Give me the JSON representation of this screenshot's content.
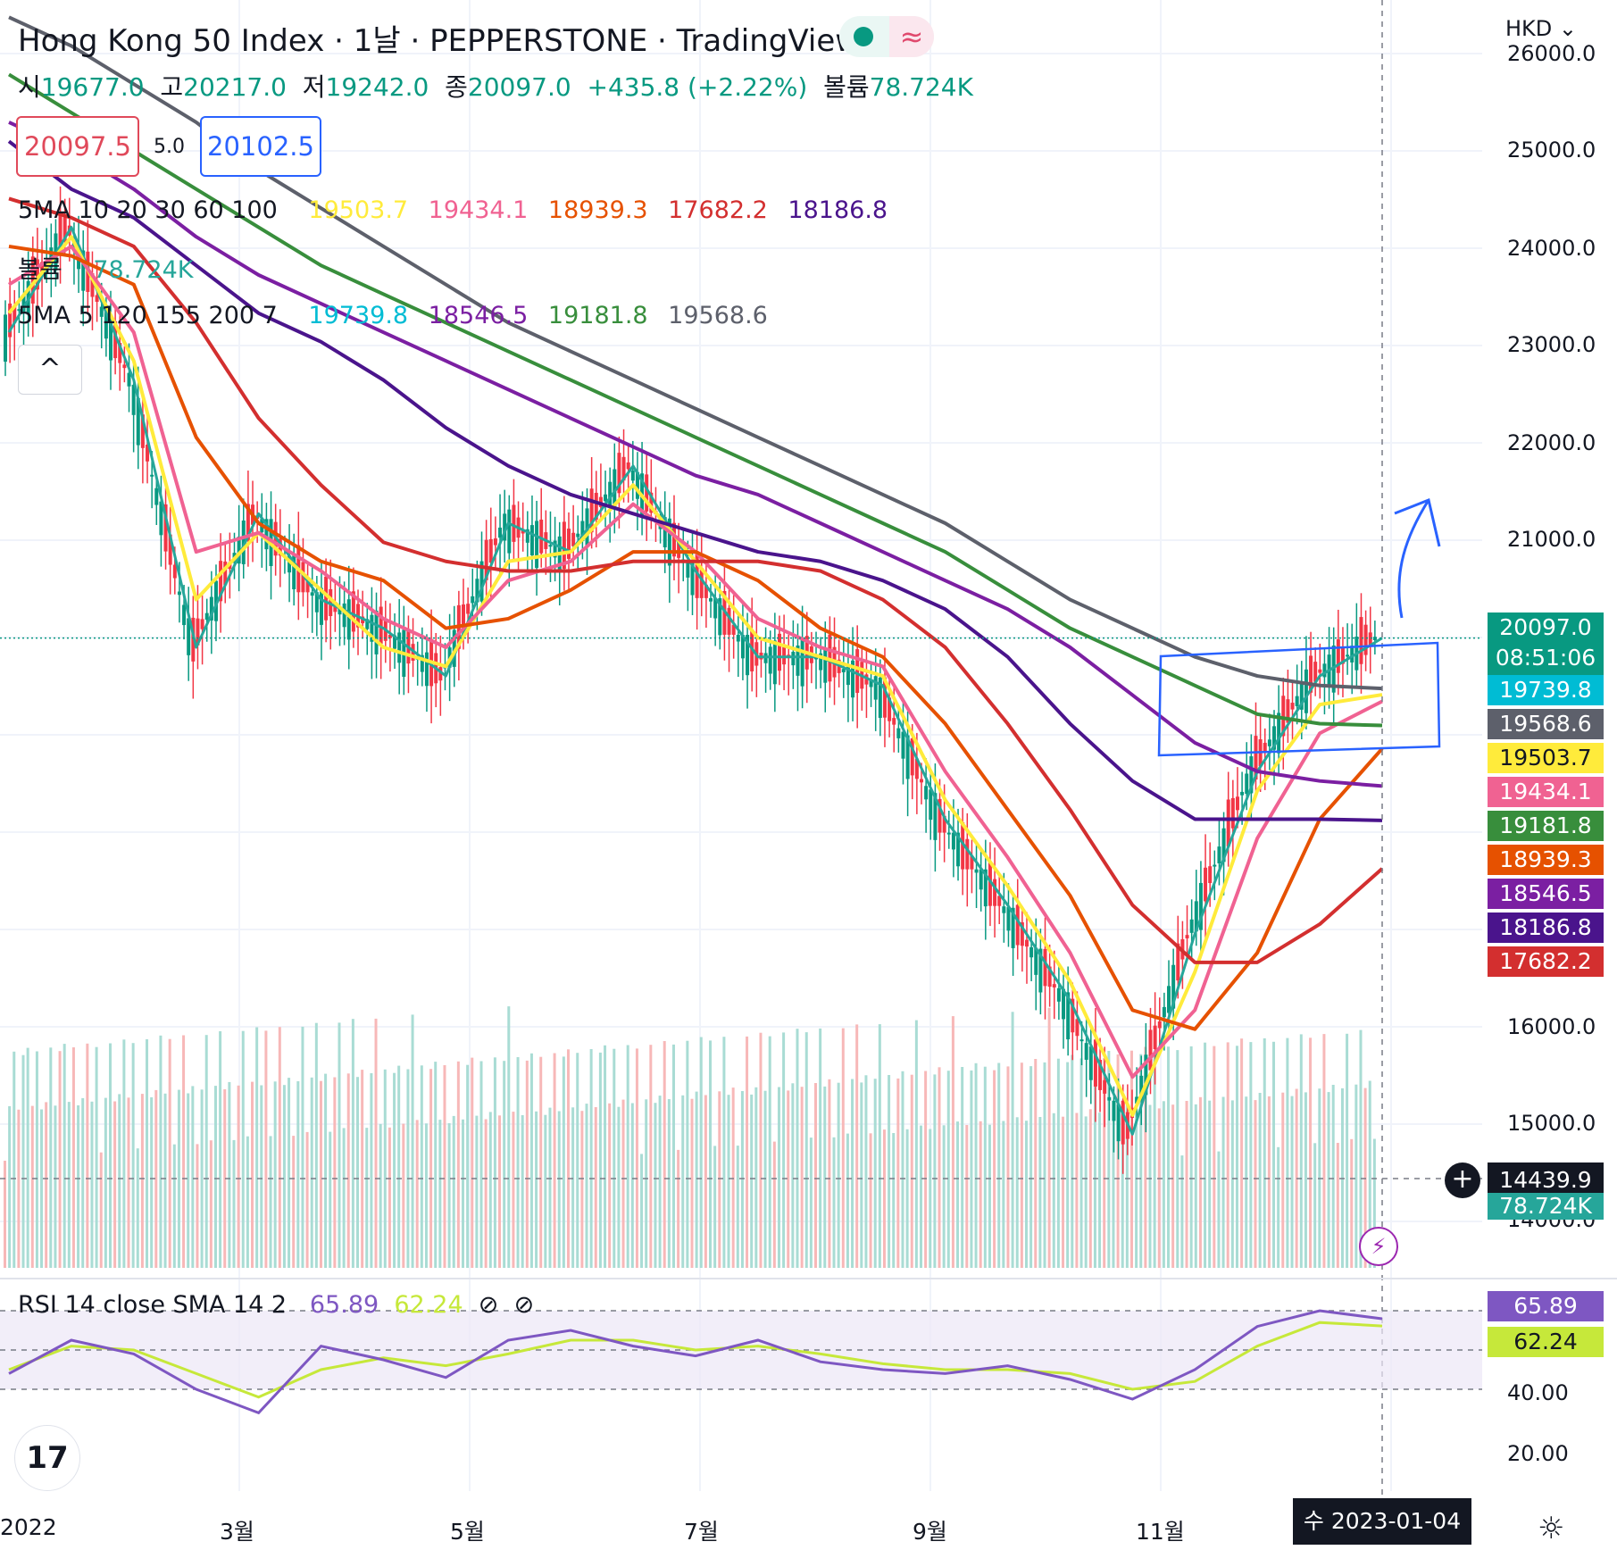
{
  "header": {
    "title": "Hong Kong 50 Index · 1날 · PEPPERSTONE · TradingView",
    "ohlc": [
      {
        "k": "시",
        "v": "19677.0"
      },
      {
        "k": "고",
        "v": "20217.0"
      },
      {
        "k": "저",
        "v": "19242.0"
      },
      {
        "k": "종",
        "v": "20097.0"
      }
    ],
    "change": "+435.8 (+2.22%)",
    "volume_label": "볼륨",
    "volume_value": "78.724K",
    "sell_price": "20097.5",
    "buy_price": "20102.5",
    "spread": "5.0"
  },
  "indicators": {
    "ma1_label": "5MA 10 20 30 60 100",
    "ma1_values": [
      "19503.7",
      "19434.1",
      "18939.3",
      "17682.2",
      "18186.8"
    ],
    "vol_label": "볼륨",
    "vol_value": "78.724K",
    "ma2_label": "5MA 5 120 155 200 7",
    "ma2_values": [
      "19739.8",
      "18546.5",
      "19181.8",
      "19568.6"
    ],
    "collapse_icon": "^"
  },
  "rsi": {
    "label": "RSI 14 close SMA 14 2",
    "rsi_value": "65.89",
    "sma_value": "62.24",
    "ticks": [
      "20.00",
      "40.00"
    ]
  },
  "axis": {
    "currency": "HKD",
    "y_ticks": [
      "26000.0",
      "25000.0",
      "24000.0",
      "23000.0",
      "22000.0",
      "21000.0",
      "16000.0",
      "15000.0",
      "14000.0"
    ],
    "x_ticks": [
      "2022",
      "3월",
      "5월",
      "7월",
      "9월",
      "11월"
    ],
    "date_label": "수 2023-01-04",
    "crosshair_value": "14439.9",
    "last_price": "20097.0",
    "countdown": "08:51:06"
  },
  "price_labels": [
    {
      "value": "19739.8",
      "color": "#00bcd4",
      "text": "#ffffff"
    },
    {
      "value": "19568.6",
      "color": "#5d606b",
      "text": "#ffffff"
    },
    {
      "value": "19503.7",
      "color": "#ffeb3b",
      "text": "#131722"
    },
    {
      "value": "19434.1",
      "color": "#f06292",
      "text": "#ffffff"
    },
    {
      "value": "19181.8",
      "color": "#388e3c",
      "text": "#ffffff"
    },
    {
      "value": "18939.3",
      "color": "#e65100",
      "text": "#ffffff"
    },
    {
      "value": "18546.5",
      "color": "#7b1fa2",
      "text": "#ffffff"
    },
    {
      "value": "18186.8",
      "color": "#4a148c",
      "text": "#ffffff"
    },
    {
      "value": "17682.2",
      "color": "#d32f2f",
      "text": "#ffffff"
    }
  ],
  "chart_data": {
    "type": "line",
    "symbol": "Hong Kong 50 Index",
    "interval": "1D",
    "ylim": [
      13500,
      26500
    ],
    "x": [
      "2022-01",
      "2022-02",
      "2022-03-01",
      "2022-03-15",
      "2022-04-01",
      "2022-04-15",
      "2022-05-01",
      "2022-05-15",
      "2022-06-01",
      "2022-06-15",
      "2022-07-01",
      "2022-07-15",
      "2022-08-01",
      "2022-08-15",
      "2022-09-01",
      "2022-09-15",
      "2022-10-01",
      "2022-10-15",
      "2022-11-01",
      "2022-11-15",
      "2022-12-01",
      "2022-12-15",
      "2023-01-04"
    ],
    "series": [
      {
        "name": "price",
        "color": "#26a69a",
        "values": [
          23300,
          24400,
          22800,
          20000,
          21400,
          20500,
          20200,
          19700,
          21300,
          21000,
          21900,
          20800,
          19900,
          19900,
          19600,
          18200,
          17300,
          16300,
          14900,
          17000,
          18700,
          19700,
          20097
        ]
      },
      {
        "name": "19503.7",
        "color": "#ffeb3b",
        "values": [
          23500,
          24300,
          23000,
          20500,
          21200,
          20600,
          20000,
          19800,
          20900,
          21000,
          21700,
          20900,
          20100,
          19900,
          19700,
          18400,
          17500,
          16500,
          15100,
          16600,
          18500,
          19400,
          19503.7
        ]
      },
      {
        "name": "19434.1",
        "color": "#f06292",
        "values": [
          23800,
          24200,
          23300,
          21000,
          21200,
          20800,
          20300,
          20000,
          20700,
          20900,
          21500,
          21000,
          20300,
          20000,
          19800,
          18700,
          17800,
          16800,
          15500,
          16200,
          18000,
          19100,
          19434.1
        ]
      },
      {
        "name": "18939.3",
        "color": "#e65100",
        "values": [
          24200,
          24100,
          23800,
          22200,
          21300,
          20900,
          20700,
          20200,
          20300,
          20600,
          21000,
          21000,
          20700,
          20200,
          19900,
          19200,
          18300,
          17400,
          16200,
          16000,
          16800,
          18200,
          18939.3
        ]
      },
      {
        "name": "17682.2",
        "color": "#d32f2f",
        "values": [
          24700,
          24500,
          24200,
          23400,
          22400,
          21700,
          21100,
          20900,
          20800,
          20800,
          20900,
          20900,
          20900,
          20800,
          20500,
          20000,
          19200,
          18300,
          17300,
          16700,
          16700,
          17100,
          17682.2
        ]
      },
      {
        "name": "18186.8",
        "color": "#4a148c",
        "values": [
          25300,
          24800,
          24500,
          24000,
          23500,
          23200,
          22800,
          22300,
          21900,
          21600,
          21400,
          21200,
          21000,
          20900,
          20700,
          20400,
          19900,
          19200,
          18600,
          18200,
          18200,
          18200,
          18186.8
        ]
      },
      {
        "name": "18546.5",
        "color": "#7b1fa2",
        "values": [
          25500,
          25200,
          24800,
          24300,
          23900,
          23600,
          23300,
          23000,
          22700,
          22400,
          22100,
          21800,
          21600,
          21300,
          21000,
          20700,
          20400,
          20000,
          19500,
          19000,
          18700,
          18600,
          18546.5
        ]
      },
      {
        "name": "19181.8",
        "color": "#388e3c",
        "values": [
          26000,
          25600,
          25200,
          24800,
          24400,
          24000,
          23700,
          23400,
          23100,
          22800,
          22500,
          22200,
          21900,
          21600,
          21300,
          21000,
          20600,
          20200,
          19900,
          19600,
          19300,
          19200,
          19181.8
        ]
      },
      {
        "name": "19568.6",
        "color": "#5d606b",
        "values": [
          26600,
          26300,
          25900,
          25500,
          25000,
          24600,
          24200,
          23800,
          23400,
          23100,
          22800,
          22500,
          22200,
          21900,
          21600,
          21300,
          20900,
          20500,
          20200,
          19900,
          19700,
          19600,
          19568.6
        ]
      }
    ],
    "volume": {
      "name": "볼륨",
      "last": "78.724K"
    },
    "rsi": {
      "ylim": [
        10,
        80
      ],
      "rsi_values": [
        38,
        55,
        48,
        30,
        18,
        52,
        45,
        36,
        55,
        60,
        52,
        47,
        55,
        44,
        40,
        38,
        42,
        35,
        25,
        40,
        62,
        70,
        65.89
      ],
      "sma_values": [
        40,
        52,
        50,
        38,
        26,
        40,
        46,
        42,
        48,
        55,
        55,
        50,
        52,
        48,
        43,
        40,
        40,
        38,
        30,
        34,
        52,
        64,
        62.24
      ]
    }
  }
}
